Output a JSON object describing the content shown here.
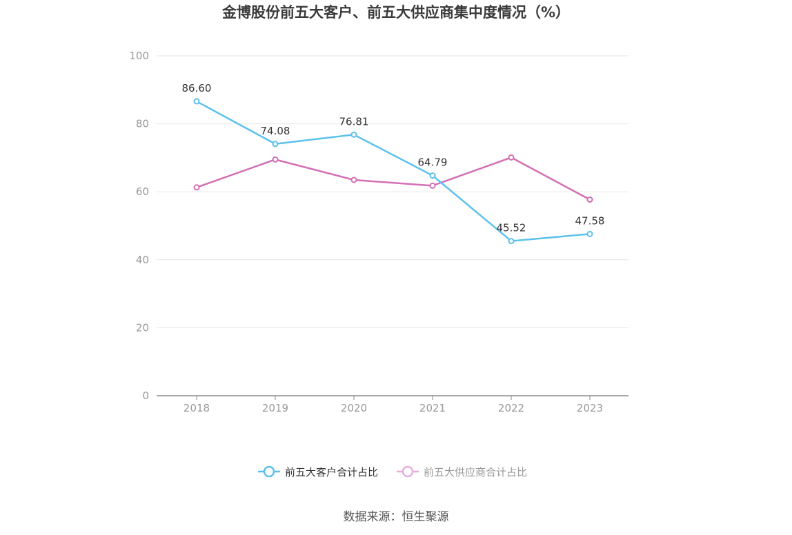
{
  "chart_data": {
    "type": "line",
    "title": "金博股份前五大客户、前五大供应商集中度情况（%）",
    "categories": [
      "2018",
      "2019",
      "2020",
      "2021",
      "2022",
      "2023"
    ],
    "y_ticks": [
      "0",
      "20",
      "40",
      "60",
      "80",
      "100"
    ],
    "ylim": [
      0,
      100
    ],
    "grid": true,
    "legend_position": "bottom",
    "series": [
      {
        "name": "前五大客户合计占比",
        "color": "#5bc0ee",
        "values": [
          86.6,
          74.08,
          76.81,
          64.79,
          45.52,
          47.58
        ],
        "labels": [
          "86.60",
          "74.08",
          "76.81",
          "64.79",
          "45.52",
          "47.58"
        ]
      },
      {
        "name": "前五大供应商合计占比",
        "color": "#d36fb4",
        "values": [
          61.3,
          69.5,
          63.5,
          61.8,
          70.1,
          57.7
        ]
      }
    ],
    "source": "数据来源：恒生聚源"
  }
}
